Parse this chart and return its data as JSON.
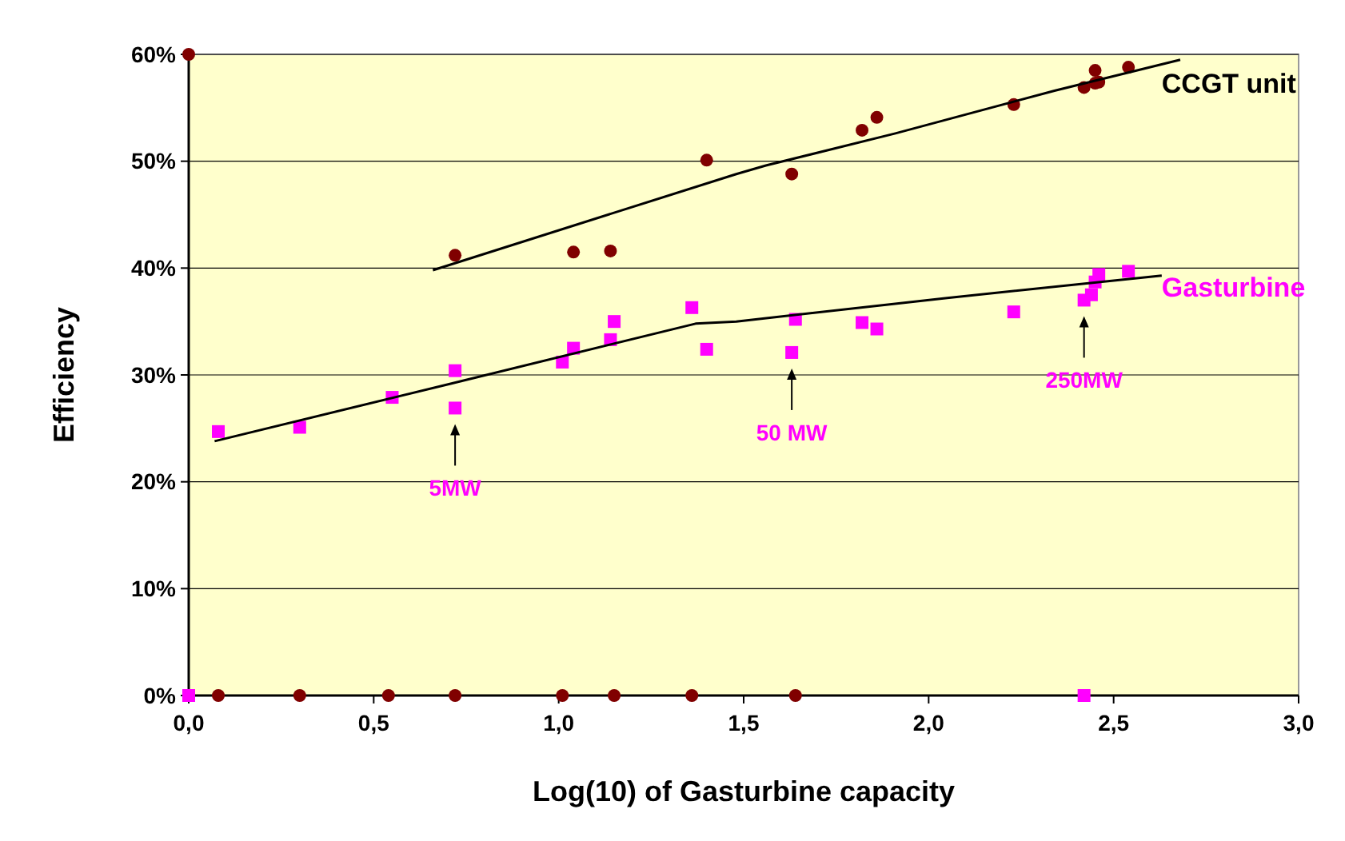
{
  "chart_data": {
    "type": "scatter",
    "xlabel": "Log(10) of  Gasturbine capacity",
    "ylabel": "Efficiency",
    "xlim": [
      0,
      3
    ],
    "ylim": [
      0,
      60
    ],
    "xticks": [
      {
        "value": 0,
        "label": "0,0"
      },
      {
        "value": 0.5,
        "label": "0,5"
      },
      {
        "value": 1,
        "label": "1,0"
      },
      {
        "value": 1.5,
        "label": "1,5"
      },
      {
        "value": 2,
        "label": "2,0"
      },
      {
        "value": 2.5,
        "label": "2,5"
      },
      {
        "value": 3,
        "label": "3,0"
      }
    ],
    "yticks": [
      {
        "value": 0,
        "label": "0%"
      },
      {
        "value": 10,
        "label": "10%"
      },
      {
        "value": 20,
        "label": "20%"
      },
      {
        "value": 30,
        "label": "30%"
      },
      {
        "value": 40,
        "label": "40%"
      },
      {
        "value": 50,
        "label": "50%"
      },
      {
        "value": 60,
        "label": "60%"
      }
    ],
    "grid": "y",
    "legend": false,
    "series": [
      {
        "name": "CCGT unit",
        "marker": "circle",
        "color": "#800000",
        "x": [
          0,
          0.08,
          0.3,
          0.54,
          0.72,
          1.01,
          1.15,
          1.36,
          1.64,
          0.72,
          1.04,
          1.14,
          1.4,
          1.63,
          1.82,
          1.86,
          2.23,
          2.42,
          2.45,
          2.45,
          2.46,
          2.54
        ],
        "values": [
          60,
          0,
          0,
          0,
          0,
          0,
          0,
          0,
          0,
          41.2,
          41.5,
          41.6,
          50.1,
          48.8,
          52.9,
          54.1,
          55.3,
          56.9,
          58.5,
          57.3,
          57.4,
          58.8
        ]
      },
      {
        "type": "line",
        "marker": "none",
        "color": "#000000",
        "x": [
          0.66,
          1.48,
          1.56,
          1.91,
          2.34,
          2.68
        ],
        "values": [
          39.8,
          48.8,
          49.6,
          52.6,
          56.6,
          59.5
        ]
      },
      {
        "name": "Gasturbine",
        "marker": "square",
        "color": "#ff00ff",
        "x": [
          0,
          2.42,
          0.08,
          0.3,
          0.55,
          0.72,
          0.72,
          1.01,
          1.04,
          1.14,
          1.15,
          1.36,
          1.4,
          1.64,
          1.63,
          1.82,
          1.86,
          2.23,
          2.42,
          2.44,
          2.45,
          2.46,
          2.54
        ],
        "values": [
          0,
          0,
          24.7,
          25.1,
          27.9,
          30.4,
          26.9,
          31.2,
          32.5,
          33.3,
          35,
          36.3,
          32.4,
          35.2,
          32.1,
          34.9,
          34.3,
          35.9,
          37,
          37.5,
          38.7,
          39.4,
          39.7
        ]
      },
      {
        "type": "line",
        "marker": "none",
        "color": "#000000",
        "x": [
          0.07,
          0.71,
          1.37,
          1.48,
          2.05,
          2.63
        ],
        "values": [
          23.8,
          29.2,
          34.8,
          35,
          37.2,
          39.3
        ]
      }
    ],
    "annotations": [
      {
        "text": "5MW",
        "x": 0.72,
        "y": 26.9
      },
      {
        "text": "50 MW",
        "x": 1.63,
        "y": 32.1
      },
      {
        "text": "250MW",
        "x": 2.42,
        "y": 37
      }
    ]
  }
}
